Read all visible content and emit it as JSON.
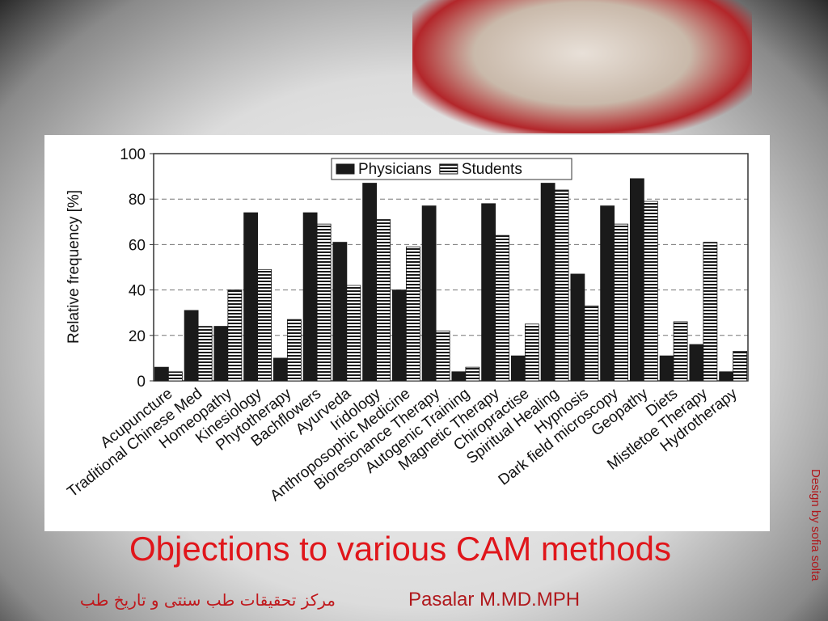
{
  "chart_data": {
    "type": "bar",
    "y_label": "Relative frequency [%]",
    "categories": [
      "Acupuncture",
      "Traditional Chinese Med",
      "Homeopathy",
      "Kinesiology",
      "Phytotherapy",
      "Bachflowers",
      "Ayurveda",
      "Iridology",
      "Anthroposophic Medicine",
      "Bioresonance Therapy",
      "Autogenic Training",
      "Magnetic Therapy",
      "Chiropractise",
      "Spiritual Healing",
      "Hypnosis",
      "Dark field microscopy",
      "Geopathy",
      "Diets",
      "Mistletoe Therapy",
      "Hydrotherapy"
    ],
    "series": [
      {
        "name": "Physicians",
        "color": "#1a1a1a",
        "fill": "solid",
        "values": [
          6,
          31,
          24,
          74,
          10,
          74,
          61,
          87,
          40,
          77,
          4,
          78,
          11,
          87,
          47,
          77,
          89,
          11,
          16,
          4
        ]
      },
      {
        "name": "Students",
        "color": "#1a1a1a",
        "fill": "horizontal-hatch",
        "values": [
          4,
          24,
          40,
          49,
          27,
          69,
          42,
          71,
          59,
          22,
          6,
          64,
          25,
          84,
          33,
          69,
          79,
          26,
          61,
          13
        ]
      }
    ],
    "ylim": [
      0,
      100
    ],
    "yticks": [
      0,
      20,
      40,
      60,
      80,
      100
    ],
    "grid": true,
    "legend": "top"
  },
  "slide": {
    "title": "Objections to various CAM methods",
    "author": "Pasalar M.MD.MPH",
    "institute": "مرکز تحقیقات طب سنتی و تاریخ طب",
    "credit": "Design by sofia solta"
  }
}
